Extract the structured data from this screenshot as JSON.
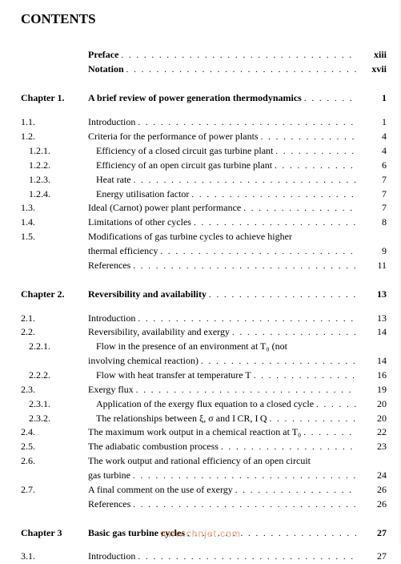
{
  "title": "CONTENTS",
  "watermark": "www.chnjet.com",
  "rows": [
    {
      "num": "",
      "label": "Preface",
      "page": "xiii",
      "bold": true,
      "space": "none"
    },
    {
      "num": "",
      "label": "Notation",
      "page": "xvii",
      "bold": true,
      "space": "none"
    },
    {
      "num": "Chapter 1.",
      "label": "A brief review of power generation thermodynamics",
      "page": "1",
      "bold": true,
      "space": "lg"
    },
    {
      "num": "1.1.",
      "label": "Introduction",
      "page": "1",
      "space": "top"
    },
    {
      "num": "1.2.",
      "label": "Criteria for the performance of power plants",
      "page": "4"
    },
    {
      "num": "1.2.1.",
      "label": "Efficiency of a closed circuit gas turbine plant",
      "page": "4",
      "indent": 1
    },
    {
      "num": "1.2.2.",
      "label": "Efficiency of an open circuit gas turbine plant",
      "page": "6",
      "indent": 1
    },
    {
      "num": "1.2.3.",
      "label": "Heat rate",
      "page": "7",
      "indent": 1
    },
    {
      "num": "1.2.4.",
      "label": "Energy utilisation factor",
      "page": "7",
      "indent": 1
    },
    {
      "num": "1.3.",
      "label": "Ideal (Carnot) power plant performance",
      "page": "7"
    },
    {
      "num": "1.4.",
      "label": "Limitations of other cycles",
      "page": "8"
    },
    {
      "num": "1.5.",
      "label": "Modifications of gas turbine cycles to achieve higher",
      "page": "",
      "noleader": true
    },
    {
      "num": "",
      "label": "thermal efficiency",
      "page": "9"
    },
    {
      "num": "",
      "label": "References",
      "page": "11"
    },
    {
      "num": "Chapter 2.",
      "label": "Reversibility and availability",
      "page": "13",
      "bold": true,
      "space": "lg"
    },
    {
      "num": "2.1.",
      "label": "Introduction",
      "page": "13",
      "space": "top"
    },
    {
      "num": "2.2.",
      "label": "Reversibility, availability and exergy",
      "page": "14"
    },
    {
      "num": "2.2.1.",
      "label": "Flow in the presence of an environment at T₀ (not",
      "page": "",
      "indent": 1,
      "noleader": true
    },
    {
      "num": "",
      "label": "involving chemical reaction)",
      "page": "14"
    },
    {
      "num": "2.2.2.",
      "label": "Flow with heat transfer at temperature T",
      "page": "16",
      "indent": 1
    },
    {
      "num": "2.3.",
      "label": "Exergy flux",
      "page": "19"
    },
    {
      "num": "2.3.1.",
      "label": "Application of the exergy flux equation to a closed cycle",
      "page": "20",
      "indent": 1
    },
    {
      "num": "2.3.2.",
      "label": "The relationships between ξ, σ and I CR, I Q",
      "page": "20",
      "indent": 1
    },
    {
      "num": "2.4.",
      "label": "The maximum work output in a chemical reaction at T₀",
      "page": "22"
    },
    {
      "num": "2.5.",
      "label": "The adiabatic combustion process",
      "page": "23"
    },
    {
      "num": "2.6.",
      "label": "The work output and rational efficiency of an open circuit",
      "page": "",
      "noleader": true
    },
    {
      "num": "",
      "label": "gas turbine",
      "page": "24"
    },
    {
      "num": "2.7.",
      "label": "A final comment on the use of exergy",
      "page": "26"
    },
    {
      "num": "",
      "label": "References",
      "page": "26"
    },
    {
      "num": "Chapter 3",
      "label": "Basic gas turbine cycles",
      "page": "27",
      "bold": true,
      "space": "lg"
    },
    {
      "num": "3.1.",
      "label": "Introduction",
      "page": "27",
      "space": "top"
    }
  ]
}
